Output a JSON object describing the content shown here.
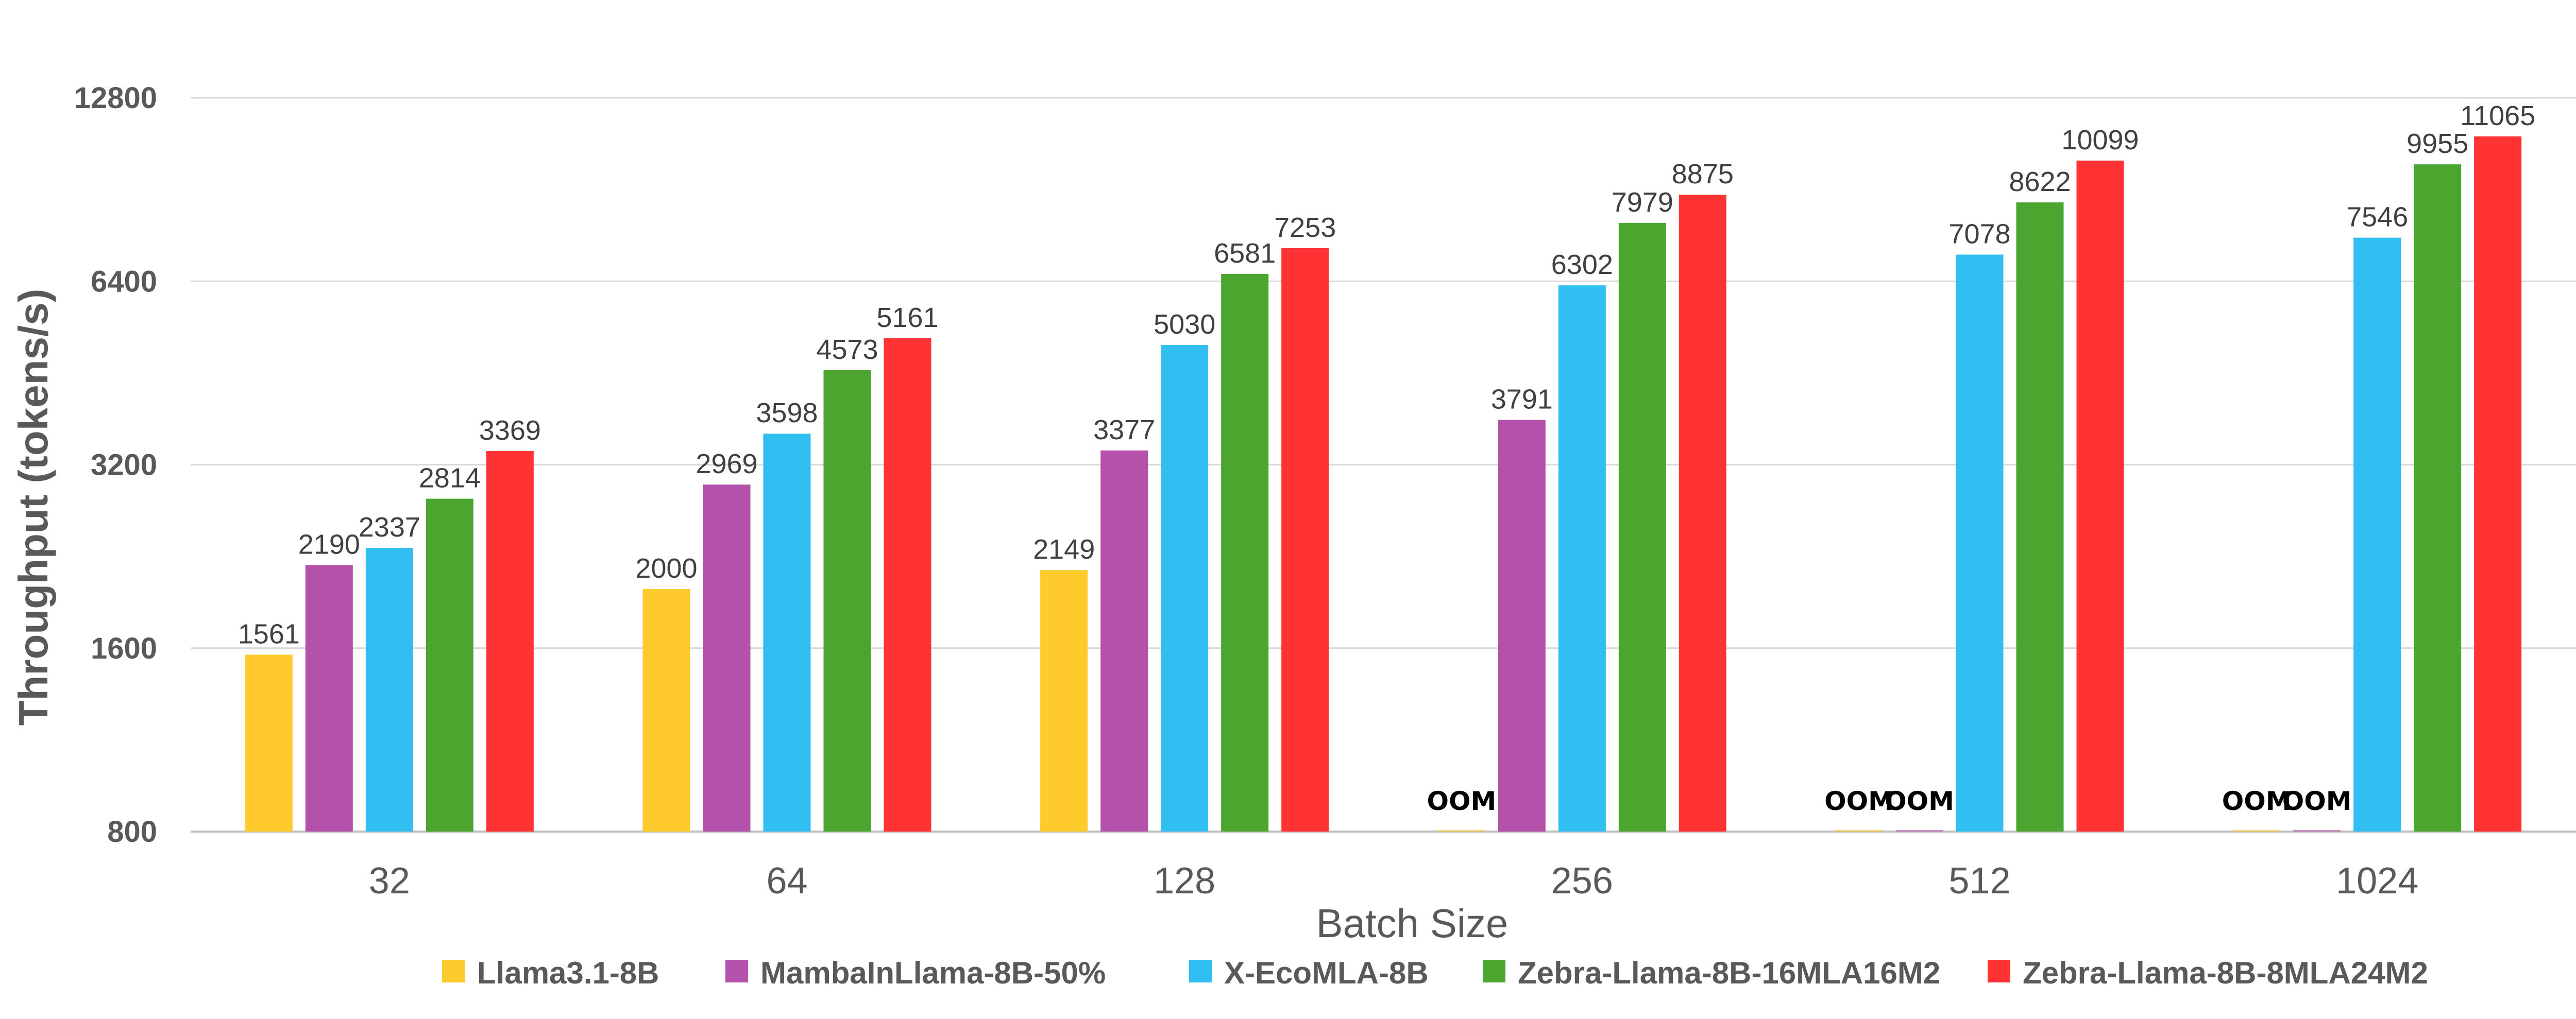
{
  "chart_data": {
    "type": "bar",
    "title": "",
    "xlabel": "Batch Size",
    "ylabel": "Throughput (tokens/s)",
    "y_scale": "log2",
    "ylim": [
      800,
      12800
    ],
    "yticks": [
      "800",
      "1600",
      "3200",
      "6400",
      "12800"
    ],
    "categories": [
      "32",
      "64",
      "128",
      "256",
      "512",
      "1024"
    ],
    "legend_position": "bottom",
    "series": [
      {
        "name": "Llama3.1-8B",
        "color": "#FFCA2C",
        "values": [
          1561,
          2000,
          2149,
          null,
          null,
          null
        ],
        "labels": [
          "1561",
          "2000",
          "2149",
          "OOM",
          "OOM",
          "OOM"
        ]
      },
      {
        "name": "MambaInLlama-8B-50%",
        "color": "#B452AB",
        "values": [
          2190,
          2969,
          3377,
          3791,
          null,
          null
        ],
        "labels": [
          "2190",
          "2969",
          "3377",
          "3791",
          "OOM",
          "OOM"
        ]
      },
      {
        "name": "X-EcoMLA-8B",
        "color": "#31BEF0",
        "values": [
          2337,
          3598,
          5030,
          6302,
          7078,
          7546
        ],
        "labels": [
          "2337",
          "3598",
          "5030",
          "6302",
          "7078",
          "7546"
        ]
      },
      {
        "name": "Zebra-Llama-8B-16MLA16M2",
        "color": "#4BA52F",
        "values": [
          2814,
          4573,
          6581,
          7979,
          8622,
          9955
        ],
        "labels": [
          "2814",
          "4573",
          "6581",
          "7979",
          "8622",
          "9955"
        ]
      },
      {
        "name": "Zebra-Llama-8B-8MLA24M2",
        "color": "#FF3333",
        "values": [
          3369,
          5161,
          7253,
          8875,
          10099,
          11065
        ],
        "labels": [
          "3369",
          "5161",
          "7253",
          "8875",
          "10099",
          "11065"
        ]
      }
    ]
  }
}
